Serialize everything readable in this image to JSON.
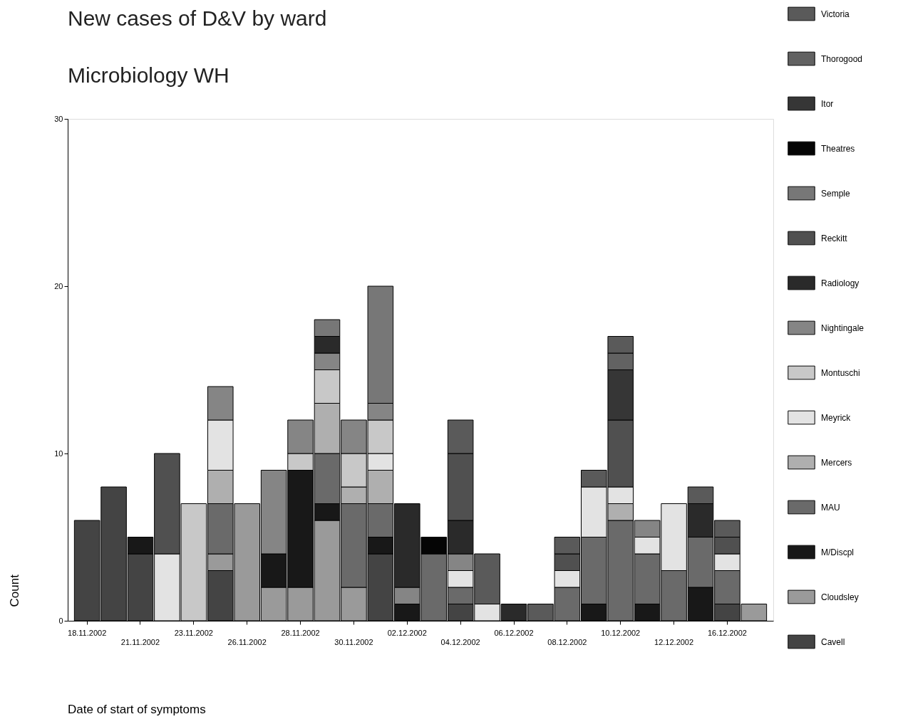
{
  "chart_data": {
    "type": "bar",
    "title": "New cases of D&V by ward",
    "subtitle": "Microbiology WH",
    "annotations": [
      "Date of start of symptoms"
    ],
    "ylabel": "Count",
    "categories": [
      "18.11.2002",
      null,
      "21.11.2002",
      null,
      "23.11.2002",
      null,
      "26.11.2002",
      null,
      "28.11.2002",
      null,
      "30.11.2002",
      null,
      "02.12.2002",
      null,
      "04.12.2002",
      null,
      "06.12.2002",
      null,
      "08.12.2002",
      null,
      "10.12.2002",
      null,
      "12.12.2002",
      null,
      "16.12.2002",
      null
    ],
    "stacked": true,
    "ylim": [
      0,
      30
    ],
    "yticks": [
      0,
      10,
      20,
      30
    ],
    "grid": false,
    "legend": "right",
    "series": [
      {
        "name": "Cavell",
        "color": "#444444",
        "values": [
          6,
          8,
          4,
          null,
          null,
          3,
          null,
          null,
          null,
          null,
          null,
          4,
          null,
          null,
          1,
          null,
          null,
          null,
          null,
          null,
          null,
          null,
          null,
          null,
          1,
          null
        ]
      },
      {
        "name": "Cloudsley",
        "color": "#9a9a9a",
        "values": [
          null,
          null,
          null,
          null,
          null,
          1,
          7,
          2,
          2,
          6,
          2,
          null,
          null,
          null,
          null,
          null,
          null,
          null,
          null,
          null,
          null,
          null,
          null,
          null,
          null,
          1
        ]
      },
      {
        "name": "M/Discpl",
        "color": "#181818",
        "values": [
          null,
          null,
          1,
          null,
          null,
          null,
          null,
          2,
          7,
          1,
          null,
          1,
          1,
          null,
          null,
          null,
          null,
          null,
          null,
          1,
          null,
          1,
          null,
          2,
          null,
          null
        ]
      },
      {
        "name": "MAU",
        "color": "#6a6a6a",
        "values": [
          null,
          null,
          null,
          null,
          null,
          3,
          null,
          null,
          null,
          3,
          5,
          2,
          null,
          4,
          1,
          null,
          null,
          null,
          2,
          4,
          6,
          3,
          3,
          3,
          2,
          null
        ]
      },
      {
        "name": "Mercers",
        "color": "#afafaf",
        "values": [
          null,
          null,
          null,
          null,
          null,
          2,
          null,
          null,
          null,
          3,
          1,
          2,
          null,
          null,
          null,
          null,
          null,
          null,
          null,
          null,
          1,
          null,
          null,
          null,
          null,
          null
        ]
      },
      {
        "name": "Meyrick",
        "color": "#e3e3e3",
        "values": [
          null,
          null,
          null,
          4,
          null,
          3,
          null,
          null,
          null,
          null,
          null,
          1,
          null,
          null,
          1,
          1,
          null,
          null,
          1,
          3,
          1,
          1,
          4,
          null,
          1,
          null
        ]
      },
      {
        "name": "Montuschi",
        "color": "#c8c8c8",
        "values": [
          null,
          null,
          null,
          null,
          7,
          null,
          null,
          null,
          1,
          2,
          2,
          2,
          null,
          null,
          null,
          null,
          null,
          null,
          null,
          null,
          null,
          null,
          null,
          null,
          null,
          null
        ]
      },
      {
        "name": "Nightingale",
        "color": "#858585",
        "values": [
          null,
          null,
          null,
          null,
          null,
          2,
          null,
          5,
          2,
          1,
          2,
          1,
          1,
          null,
          1,
          null,
          null,
          null,
          null,
          null,
          null,
          1,
          null,
          null,
          null,
          null
        ]
      },
      {
        "name": "Radiology",
        "color": "#2a2a2a",
        "values": [
          null,
          null,
          null,
          null,
          null,
          null,
          null,
          null,
          null,
          1,
          null,
          null,
          5,
          null,
          2,
          null,
          1,
          null,
          null,
          null,
          null,
          null,
          null,
          2,
          null,
          null
        ]
      },
      {
        "name": "Reckitt",
        "color": "#505050",
        "values": [
          null,
          null,
          null,
          6,
          null,
          null,
          null,
          null,
          null,
          null,
          null,
          null,
          null,
          null,
          4,
          null,
          null,
          null,
          1,
          null,
          4,
          null,
          null,
          null,
          1,
          null
        ]
      },
      {
        "name": "Semple",
        "color": "#777777",
        "values": [
          null,
          null,
          null,
          null,
          null,
          null,
          null,
          null,
          null,
          1,
          null,
          7,
          null,
          null,
          null,
          null,
          null,
          null,
          null,
          null,
          null,
          null,
          null,
          null,
          null,
          null
        ]
      },
      {
        "name": "Theatres",
        "color": "#050505",
        "values": [
          null,
          null,
          null,
          null,
          null,
          null,
          null,
          null,
          null,
          null,
          null,
          null,
          null,
          1,
          null,
          null,
          null,
          null,
          null,
          null,
          null,
          null,
          null,
          null,
          null,
          null
        ]
      },
      {
        "name": "Itor",
        "color": "#363636",
        "values": [
          null,
          null,
          null,
          null,
          null,
          null,
          null,
          null,
          null,
          null,
          null,
          null,
          null,
          null,
          null,
          null,
          null,
          null,
          null,
          null,
          3,
          null,
          null,
          null,
          null,
          null
        ]
      },
      {
        "name": "Thorogood",
        "color": "#626262",
        "values": [
          null,
          null,
          null,
          null,
          null,
          null,
          null,
          null,
          null,
          null,
          null,
          null,
          null,
          null,
          null,
          null,
          null,
          null,
          null,
          null,
          1,
          null,
          null,
          null,
          null,
          null
        ]
      },
      {
        "name": "Victoria",
        "color": "#5a5a5a",
        "values": [
          null,
          null,
          null,
          null,
          null,
          null,
          null,
          null,
          null,
          null,
          null,
          null,
          null,
          null,
          2,
          3,
          null,
          1,
          1,
          1,
          1,
          null,
          null,
          1,
          1,
          null
        ]
      }
    ]
  }
}
